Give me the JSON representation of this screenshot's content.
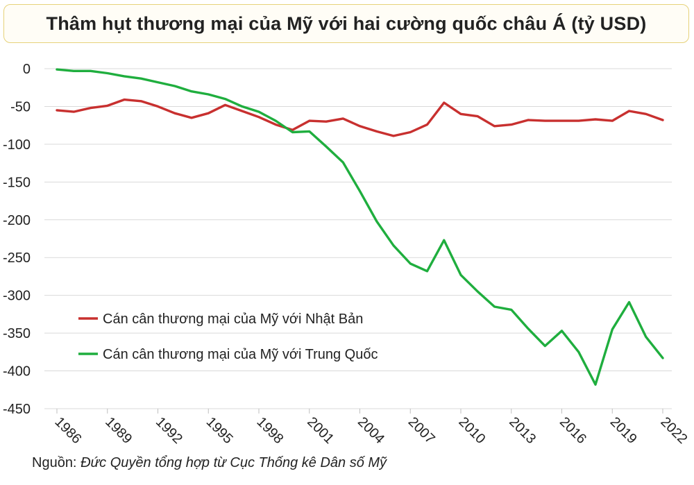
{
  "chart_data": {
    "type": "line",
    "title": "Thâm hụt thương mại của Mỹ với hai cường quốc châu Á (tỷ USD)",
    "x": [
      1986,
      1987,
      1988,
      1989,
      1990,
      1991,
      1992,
      1993,
      1994,
      1995,
      1996,
      1997,
      1998,
      1999,
      2000,
      2001,
      2002,
      2003,
      2004,
      2005,
      2006,
      2007,
      2008,
      2009,
      2010,
      2011,
      2012,
      2013,
      2014,
      2015,
      2016,
      2017,
      2018,
      2019,
      2020,
      2021,
      2022
    ],
    "x_tick_labels": [
      "1986",
      "1989",
      "1992",
      "1995",
      "1998",
      "2001",
      "2004",
      "2007",
      "2010",
      "2013",
      "2016",
      "2019",
      "2022"
    ],
    "x_tick_values": [
      1986,
      1989,
      1992,
      1995,
      1998,
      2001,
      2004,
      2007,
      2010,
      2013,
      2016,
      2019,
      2022
    ],
    "y_tick_labels": [
      "0",
      "-50",
      "-100",
      "-150",
      "-200",
      "-250",
      "-300",
      "-350",
      "-400",
      "-450"
    ],
    "y_tick_values": [
      0,
      -50,
      -100,
      -150,
      -200,
      -250,
      -300,
      -350,
      -400,
      -450
    ],
    "ylim": [
      -450,
      0
    ],
    "xlim": [
      1986,
      2022
    ],
    "grid": "horizontal",
    "legend_position": "bottom-left",
    "series": [
      {
        "name": "Cán cân thương mại của Mỹ với Nhật Bản",
        "color": "#c8302f",
        "values": [
          -55,
          -57,
          -52,
          -49,
          -41,
          -43,
          -50,
          -59,
          -65,
          -59,
          -48,
          -56,
          -64,
          -74,
          -81,
          -69,
          -70,
          -66,
          -76,
          -83,
          -89,
          -84,
          -74,
          -45,
          -60,
          -63,
          -76,
          -74,
          -68,
          -69,
          -69,
          -69,
          -67,
          -69,
          -56,
          -60,
          -68
        ]
      },
      {
        "name": "Cán cân thương mại của Mỹ với Trung Quốc",
        "color": "#1fae3e",
        "values": [
          -1,
          -3,
          -3,
          -6,
          -10,
          -13,
          -18,
          -23,
          -30,
          -34,
          -40,
          -50,
          -57,
          -69,
          -84,
          -83,
          -103,
          -124,
          -162,
          -202,
          -234,
          -258,
          -268,
          -227,
          -273,
          -295,
          -315,
          -319,
          -344,
          -367,
          -347,
          -375,
          -418,
          -345,
          -309,
          -355,
          -383
        ]
      }
    ]
  },
  "source": {
    "label": "Nguồn:",
    "detail": "Đức Quyền tổng hợp từ Cục Thống kê Dân số Mỹ"
  }
}
